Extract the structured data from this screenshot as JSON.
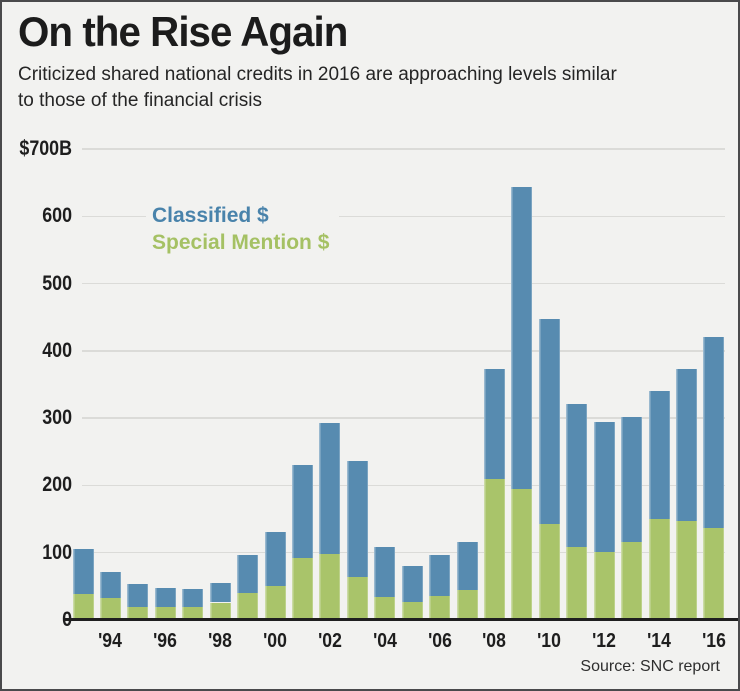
{
  "header": {
    "title": "On the Rise Again",
    "subtitle": "Criticized shared national credits in 2016 are approaching levels similar\nto those of the financial crisis"
  },
  "footer": {
    "source": "Source: SNC report"
  },
  "colors": {
    "classified_bar": "#578bb0",
    "special_mention_bar": "#a9c46a",
    "classified_legend_text": "#4983ab",
    "special_mention_legend_text": "#a5c164",
    "background": "#f2f2f0",
    "gridline": "#dbdbd8",
    "axis": "#1f1f1f"
  },
  "chart_data": {
    "type": "bar",
    "stacked": true,
    "title": "On the Rise Again",
    "unit": "$ billions",
    "ylim": [
      0,
      700
    ],
    "grid": "horizontal",
    "legend_position": "inside-top-left",
    "categories": [
      1993,
      1994,
      1995,
      1996,
      1997,
      1998,
      1999,
      2000,
      2001,
      2002,
      2003,
      2004,
      2005,
      2006,
      2007,
      2008,
      2009,
      2010,
      2011,
      2012,
      2013,
      2014,
      2015,
      2016
    ],
    "series": [
      {
        "name": "Special Mention $",
        "color": "#a9c46a",
        "values": [
          38,
          33,
          20,
          19,
          20,
          26,
          40,
          50,
          92,
          98,
          64,
          34,
          27,
          36,
          44,
          210,
          195,
          143,
          109,
          101,
          116,
          150,
          147,
          137
        ]
      },
      {
        "name": "Classified $",
        "color": "#578bb0",
        "values": [
          68,
          39,
          33,
          29,
          26,
          29,
          57,
          81,
          138,
          195,
          173,
          75,
          53,
          61,
          72,
          163,
          448,
          304,
          212,
          194,
          186,
          191,
          226,
          284
        ]
      }
    ],
    "totals_criticized": [
      106,
      72,
      53,
      48,
      46,
      55,
      97,
      131,
      230,
      293,
      237,
      109,
      80,
      97,
      116,
      373,
      643,
      447,
      321,
      295,
      302,
      341,
      373,
      421
    ],
    "y_ticks": [
      {
        "value": 700,
        "label": "$700B"
      },
      {
        "value": 600,
        "label": "600"
      },
      {
        "value": 500,
        "label": "500"
      },
      {
        "value": 400,
        "label": "400"
      },
      {
        "value": 300,
        "label": "300"
      },
      {
        "value": 200,
        "label": "200"
      },
      {
        "value": 100,
        "label": "100"
      },
      {
        "value": 0,
        "label": "0"
      }
    ],
    "x_ticks": [
      {
        "year": 1994,
        "label": "'94"
      },
      {
        "year": 1996,
        "label": "'96"
      },
      {
        "year": 1998,
        "label": "'98"
      },
      {
        "year": 2000,
        "label": "'00"
      },
      {
        "year": 2002,
        "label": "'02"
      },
      {
        "year": 2004,
        "label": "'04"
      },
      {
        "year": 2006,
        "label": "'06"
      },
      {
        "year": 2008,
        "label": "'08"
      },
      {
        "year": 2010,
        "label": "'10"
      },
      {
        "year": 2012,
        "label": "'12"
      },
      {
        "year": 2014,
        "label": "'14"
      },
      {
        "year": 2016,
        "label": "'16"
      }
    ]
  }
}
